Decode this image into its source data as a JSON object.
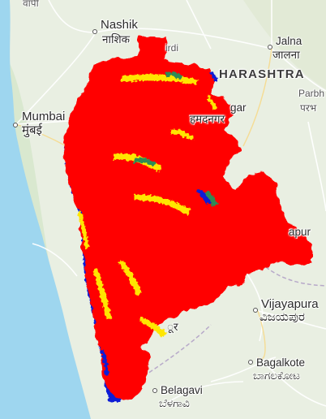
{
  "map": {
    "basemap": "road map, western India",
    "overlay": {
      "description": "classified raster region",
      "colors": {
        "dominant": "#ff0000",
        "secondary_yellow": "#ffe600",
        "secondary_green": "#2e8b57",
        "secondary_blue": "#0a1fd6",
        "sea": "#9ed6ef",
        "land": "#e9efe2",
        "roads": "#ffffff",
        "boundary": "#b7a9c9"
      }
    },
    "labels": {
      "top_fragment": "वापी",
      "nashik_en": "Nashik",
      "nashik_local": "नाशिक",
      "shirdi_fragment": "irdi",
      "jalna_en": "Jalna",
      "jalna_local": "जालना",
      "state": "HARASHTRA",
      "parbhani_en_fragment": "Parbh",
      "parbhani_local_fragment": "परभ",
      "ahmednagar_fragment_en": "gar",
      "ahmednagar_fragment_local": "हमदनगर",
      "mumbai_en": "Mumbai",
      "mumbai_local": "मुंबई",
      "solapur_fragment": "apur",
      "vijayapura_en": "Vijayapura",
      "vijayapura_local": "ವಿಜಯಪುರ",
      "kolhapur_fragment": "ूर",
      "bagalkote_en": "Bagalkote",
      "bagalkote_local": "ಬಾಗಲಕೋಟ",
      "belagavi_en": "Belagavi",
      "belagavi_local": "ಬೆಳಗಾವಿ"
    }
  }
}
